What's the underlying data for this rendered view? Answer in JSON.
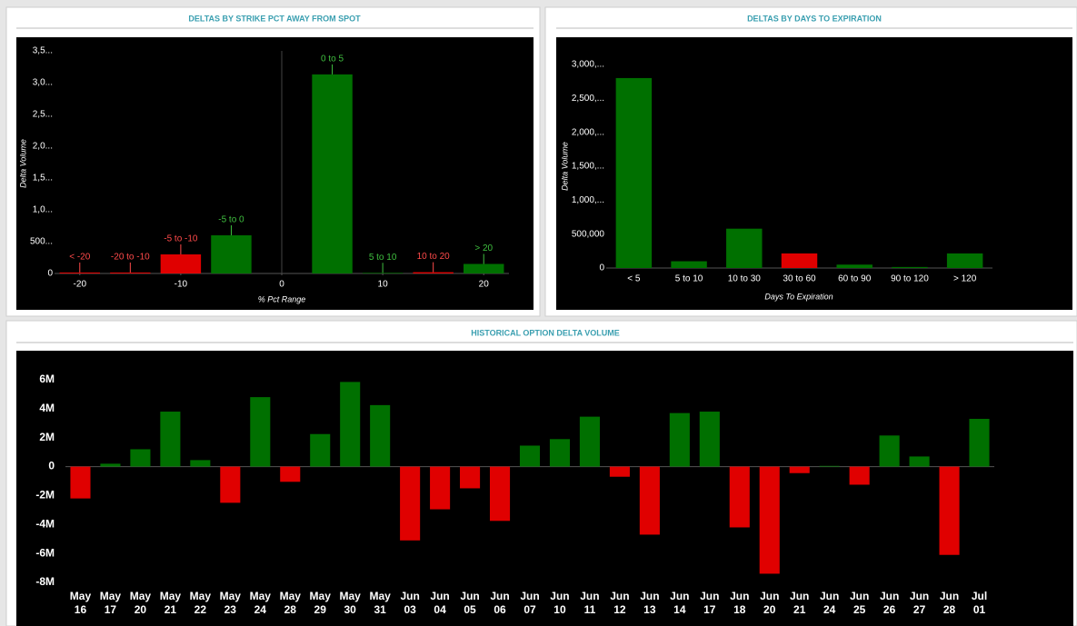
{
  "chart_data": [
    {
      "type": "bar",
      "title": "DELTAS BY STRIKE PCT AWAY FROM SPOT",
      "x_label": "% Pct Range",
      "y_label": "Delta Volume",
      "x": [
        -20,
        -15,
        -10,
        -5,
        5,
        10,
        15,
        20
      ],
      "labels": [
        "< -20",
        "-20 to -10",
        "-5 to -10",
        "-5 to 0",
        "0 to 5",
        "5 to 10",
        "10 to 20",
        "> 20"
      ],
      "values": [
        15000,
        15000,
        300000,
        600000,
        3130000,
        10000,
        20000,
        150000
      ],
      "colors": [
        "#e00000",
        "#e00000",
        "#e00000",
        "#007000",
        "#007000",
        "#007000",
        "#e00000",
        "#007000"
      ],
      "label_colors": [
        "#ff4a4a",
        "#ff4a4a",
        "#ff4a4a",
        "#3fbf3f",
        "#3fbf3f",
        "#3fbf3f",
        "#ff4a4a",
        "#3fbf3f"
      ],
      "xlim": [
        -22.5,
        22.5
      ],
      "xticks": [
        -20,
        -10,
        0,
        10,
        20
      ],
      "ylim": [
        0,
        3500000
      ],
      "yticks": [
        0,
        {
          "value": 500000,
          "label": "500..."
        },
        {
          "value": 1000000,
          "label": "1,0..."
        },
        {
          "value": 1500000,
          "label": "1,5..."
        },
        {
          "value": 2000000,
          "label": "2,0..."
        },
        {
          "value": 2500000,
          "label": "2,5..."
        },
        {
          "value": 3000000,
          "label": "3,0..."
        },
        {
          "value": 3500000,
          "label": "3,5..."
        }
      ]
    },
    {
      "type": "bar",
      "title": "DELTAS BY DAYS TO EXPIRATION",
      "x_label": "Days To Expiration",
      "y_label": "Delta Volume",
      "categories": [
        "< 5",
        "5 to 10",
        "10 to 30",
        "30 to 60",
        "60 to 90",
        "90 to 120",
        "> 120"
      ],
      "values": [
        2800000,
        100000,
        580000,
        215000,
        50000,
        15000,
        215000
      ],
      "colors": [
        "#007000",
        "#007000",
        "#007000",
        "#e00000",
        "#007000",
        "#007000",
        "#007000"
      ],
      "ylim": [
        0,
        3000000
      ],
      "yticks": [
        0,
        {
          "value": 500000,
          "label": "500,000"
        },
        {
          "value": 1000000,
          "label": "1,000,..."
        },
        {
          "value": 1500000,
          "label": "1,500,..."
        },
        {
          "value": 2000000,
          "label": "2,000,..."
        },
        {
          "value": 2500000,
          "label": "2,500,..."
        },
        {
          "value": 3000000,
          "label": "3,000,..."
        }
      ]
    },
    {
      "type": "bar",
      "title": "HISTORICAL OPTION DELTA VOLUME",
      "categories": [
        "May 16",
        "May 17",
        "May 20",
        "May 21",
        "May 22",
        "May 23",
        "May 24",
        "May 28",
        "May 29",
        "May 30",
        "May 31",
        "Jun 03",
        "Jun 04",
        "Jun 05",
        "Jun 06",
        "Jun 07",
        "Jun 10",
        "Jun 11",
        "Jun 12",
        "Jun 13",
        "Jun 14",
        "Jun 17",
        "Jun 18",
        "Jun 20",
        "Jun 21",
        "Jun 24",
        "Jun 25",
        "Jun 26",
        "Jun 27",
        "Jun 28",
        "Jul 01"
      ],
      "values": [
        -2200000,
        200000,
        1200000,
        3800000,
        450000,
        -2500000,
        4800000,
        -1050000,
        2250000,
        5850000,
        4250000,
        -5100000,
        -2950000,
        -1500000,
        -3750000,
        1450000,
        1900000,
        3450000,
        -700000,
        -4700000,
        3700000,
        3800000,
        -4200000,
        -7400000,
        -450000,
        50000,
        -1250000,
        2150000,
        700000,
        -6100000,
        3300000
      ],
      "positive_color": "#007000",
      "negative_color": "#e00000",
      "ylim": [
        -8000000,
        6000000
      ],
      "yticks": [
        {
          "value": -8000000,
          "label": "-8M"
        },
        {
          "value": -6000000,
          "label": "-6M"
        },
        {
          "value": -4000000,
          "label": "-4M"
        },
        {
          "value": -2000000,
          "label": "-2M"
        },
        0,
        {
          "value": 2000000,
          "label": "2M"
        },
        {
          "value": 4000000,
          "label": "4M"
        },
        {
          "value": 6000000,
          "label": "6M"
        }
      ]
    }
  ]
}
